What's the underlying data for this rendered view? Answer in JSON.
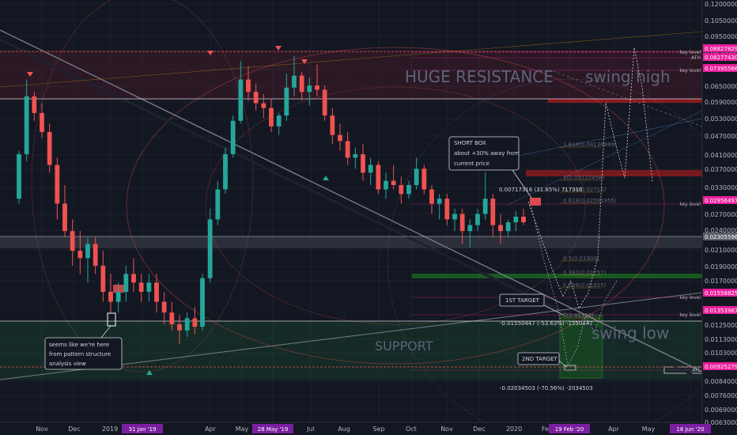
{
  "chart_data": {
    "type": "candlestick",
    "title": "",
    "xlabel": "",
    "ylabel": "",
    "y_scale": "log",
    "ylim": [
      0.0053,
      0.12
    ],
    "grid": true,
    "x_ticks": [
      "Nov",
      "Dec",
      "2019",
      "31 Jan '19",
      "Apr",
      "May",
      "28 May '19",
      "Jul",
      "Aug",
      "Sep",
      "Oct",
      "Nov",
      "Dec",
      "2020",
      "Feb",
      "19 Feb '20",
      "Apr",
      "May",
      "16 Jun '20"
    ],
    "y_ticks": [
      "0.12000000",
      "0.10500000",
      "0.09500000",
      "0.08500000",
      "0.07500000",
      "0.06500000",
      "0.05900000",
      "0.05300000",
      "0.04700000",
      "0.04100000",
      "0.03700000",
      "0.03300000",
      "0.02700000",
      "0.02400000",
      "0.02100000",
      "0.01900000",
      "0.01700000",
      "0.01250000",
      "0.01130000",
      "0.01030000",
      "0.00840000",
      "0.00760000",
      "0.00690000",
      "0.00630000"
    ],
    "price_tags": [
      {
        "label": "0.08827829",
        "color": "#e91e9b"
      },
      {
        "label": "0.08277430",
        "color": "#e91e9b"
      },
      {
        "label": "0.07395566",
        "color": "#e91e9b"
      },
      {
        "label": "0.02956497",
        "color": "#e91e9b"
      },
      {
        "label": "0.02305596",
        "color": "#5d606b"
      },
      {
        "label": "0.01558825",
        "color": "#e91e9b"
      },
      {
        "label": "0.01353987",
        "color": "#e91e9b"
      },
      {
        "label": "0.00925279",
        "color": "#e91e9b"
      }
    ],
    "key_level_labels": [
      "key level",
      "ATH",
      "key level",
      "key level",
      "key level",
      "key level",
      "ATL"
    ],
    "annotations": {
      "huge_resistance": "HUGE RESISTANCE",
      "swing_high": "swing high",
      "swing_low": "swing low",
      "support": "SUPPORT",
      "short_box_lines": [
        "SHORT BOX",
        "about +30% away from",
        "current price"
      ],
      "short_box_measure": "0.00717316 (31.65%) 717316",
      "first_target": "1ST TARGET",
      "second_target": "2ND TARGET",
      "target1_measure": "-0.01550447 (-53.63%) -1550447",
      "target2_measure": "-0.02034503 (-70.56%) -2034503",
      "pattern_note_lines": [
        "seems like we're here",
        "from pattern structure",
        "analysis view"
      ]
    },
    "fib_labels": [
      "1.618(0.04136889)",
      "1(0.03122456)",
      "0.786(0.02715)",
      "0.618(0.02591855)",
      "0.5(0.01900)",
      "0.382(0.01757)",
      "0.236(0.01655)",
      "0(0.01350)"
    ],
    "series": [
      {
        "values": [
          [
            0.028,
            0.04,
            0.027,
            0.039
          ],
          [
            0.039,
            0.068,
            0.037,
            0.06
          ],
          [
            0.06,
            0.062,
            0.05,
            0.053
          ],
          [
            0.053,
            0.057,
            0.044,
            0.046
          ],
          [
            0.046,
            0.049,
            0.034,
            0.036
          ],
          [
            0.036,
            0.038,
            0.024,
            0.027
          ],
          [
            0.027,
            0.031,
            0.021,
            0.022
          ],
          [
            0.022,
            0.024,
            0.017,
            0.019
          ],
          [
            0.019,
            0.022,
            0.016,
            0.018
          ],
          [
            0.018,
            0.021,
            0.015,
            0.02
          ],
          [
            0.02,
            0.021,
            0.016,
            0.017
          ],
          [
            0.017,
            0.019,
            0.013,
            0.014
          ],
          [
            0.014,
            0.016,
            0.012,
            0.013
          ],
          [
            0.013,
            0.015,
            0.012,
            0.014
          ],
          [
            0.014,
            0.017,
            0.013,
            0.016
          ],
          [
            0.016,
            0.018,
            0.014,
            0.015
          ],
          [
            0.015,
            0.016,
            0.013,
            0.014
          ],
          [
            0.014,
            0.016,
            0.013,
            0.015
          ],
          [
            0.015,
            0.016,
            0.012,
            0.013
          ],
          [
            0.013,
            0.014,
            0.011,
            0.012
          ],
          [
            0.012,
            0.013,
            0.0105,
            0.011
          ],
          [
            0.011,
            0.0118,
            0.0095,
            0.0105
          ],
          [
            0.0105,
            0.012,
            0.01,
            0.0115
          ],
          [
            0.0115,
            0.0125,
            0.0102,
            0.0108
          ],
          [
            0.0108,
            0.016,
            0.0105,
            0.0155
          ],
          [
            0.0155,
            0.026,
            0.015,
            0.024
          ],
          [
            0.024,
            0.032,
            0.023,
            0.03
          ],
          [
            0.03,
            0.041,
            0.029,
            0.039
          ],
          [
            0.039,
            0.052,
            0.038,
            0.05
          ],
          [
            0.05,
            0.078,
            0.049,
            0.068
          ],
          [
            0.068,
            0.075,
            0.058,
            0.062
          ],
          [
            0.062,
            0.066,
            0.054,
            0.057
          ],
          [
            0.057,
            0.061,
            0.051,
            0.055
          ],
          [
            0.055,
            0.059,
            0.046,
            0.048
          ],
          [
            0.048,
            0.053,
            0.045,
            0.052
          ],
          [
            0.052,
            0.071,
            0.05,
            0.064
          ],
          [
            0.064,
            0.081,
            0.06,
            0.07
          ],
          [
            0.07,
            0.072,
            0.058,
            0.062
          ],
          [
            0.062,
            0.069,
            0.056,
            0.065
          ],
          [
            0.065,
            0.076,
            0.06,
            0.063
          ],
          [
            0.063,
            0.065,
            0.05,
            0.052
          ],
          [
            0.052,
            0.055,
            0.042,
            0.045
          ],
          [
            0.045,
            0.049,
            0.04,
            0.043
          ],
          [
            0.043,
            0.046,
            0.036,
            0.038
          ],
          [
            0.038,
            0.041,
            0.035,
            0.039
          ],
          [
            0.039,
            0.042,
            0.032,
            0.034
          ],
          [
            0.034,
            0.038,
            0.031,
            0.036
          ],
          [
            0.036,
            0.037,
            0.029,
            0.03
          ],
          [
            0.03,
            0.034,
            0.028,
            0.032
          ],
          [
            0.032,
            0.036,
            0.03,
            0.031
          ],
          [
            0.031,
            0.033,
            0.027,
            0.029
          ],
          [
            0.029,
            0.032,
            0.028,
            0.031
          ],
          [
            0.031,
            0.038,
            0.03,
            0.035
          ],
          [
            0.035,
            0.036,
            0.029,
            0.03
          ],
          [
            0.03,
            0.031,
            0.025,
            0.027
          ],
          [
            0.027,
            0.029,
            0.024,
            0.028
          ],
          [
            0.028,
            0.029,
            0.023,
            0.024
          ],
          [
            0.024,
            0.026,
            0.022,
            0.025
          ],
          [
            0.025,
            0.026,
            0.02,
            0.022
          ],
          [
            0.022,
            0.024,
            0.0195,
            0.023
          ],
          [
            0.023,
            0.026,
            0.022,
            0.025
          ],
          [
            0.025,
            0.034,
            0.024,
            0.028
          ],
          [
            0.028,
            0.029,
            0.021,
            0.023
          ],
          [
            0.023,
            0.025,
            0.02,
            0.022
          ],
          [
            0.022,
            0.024,
            0.021,
            0.0235
          ],
          [
            0.0235,
            0.0255,
            0.022,
            0.0245
          ],
          [
            0.0245,
            0.026,
            0.023,
            0.0235
          ]
        ]
      }
    ]
  }
}
